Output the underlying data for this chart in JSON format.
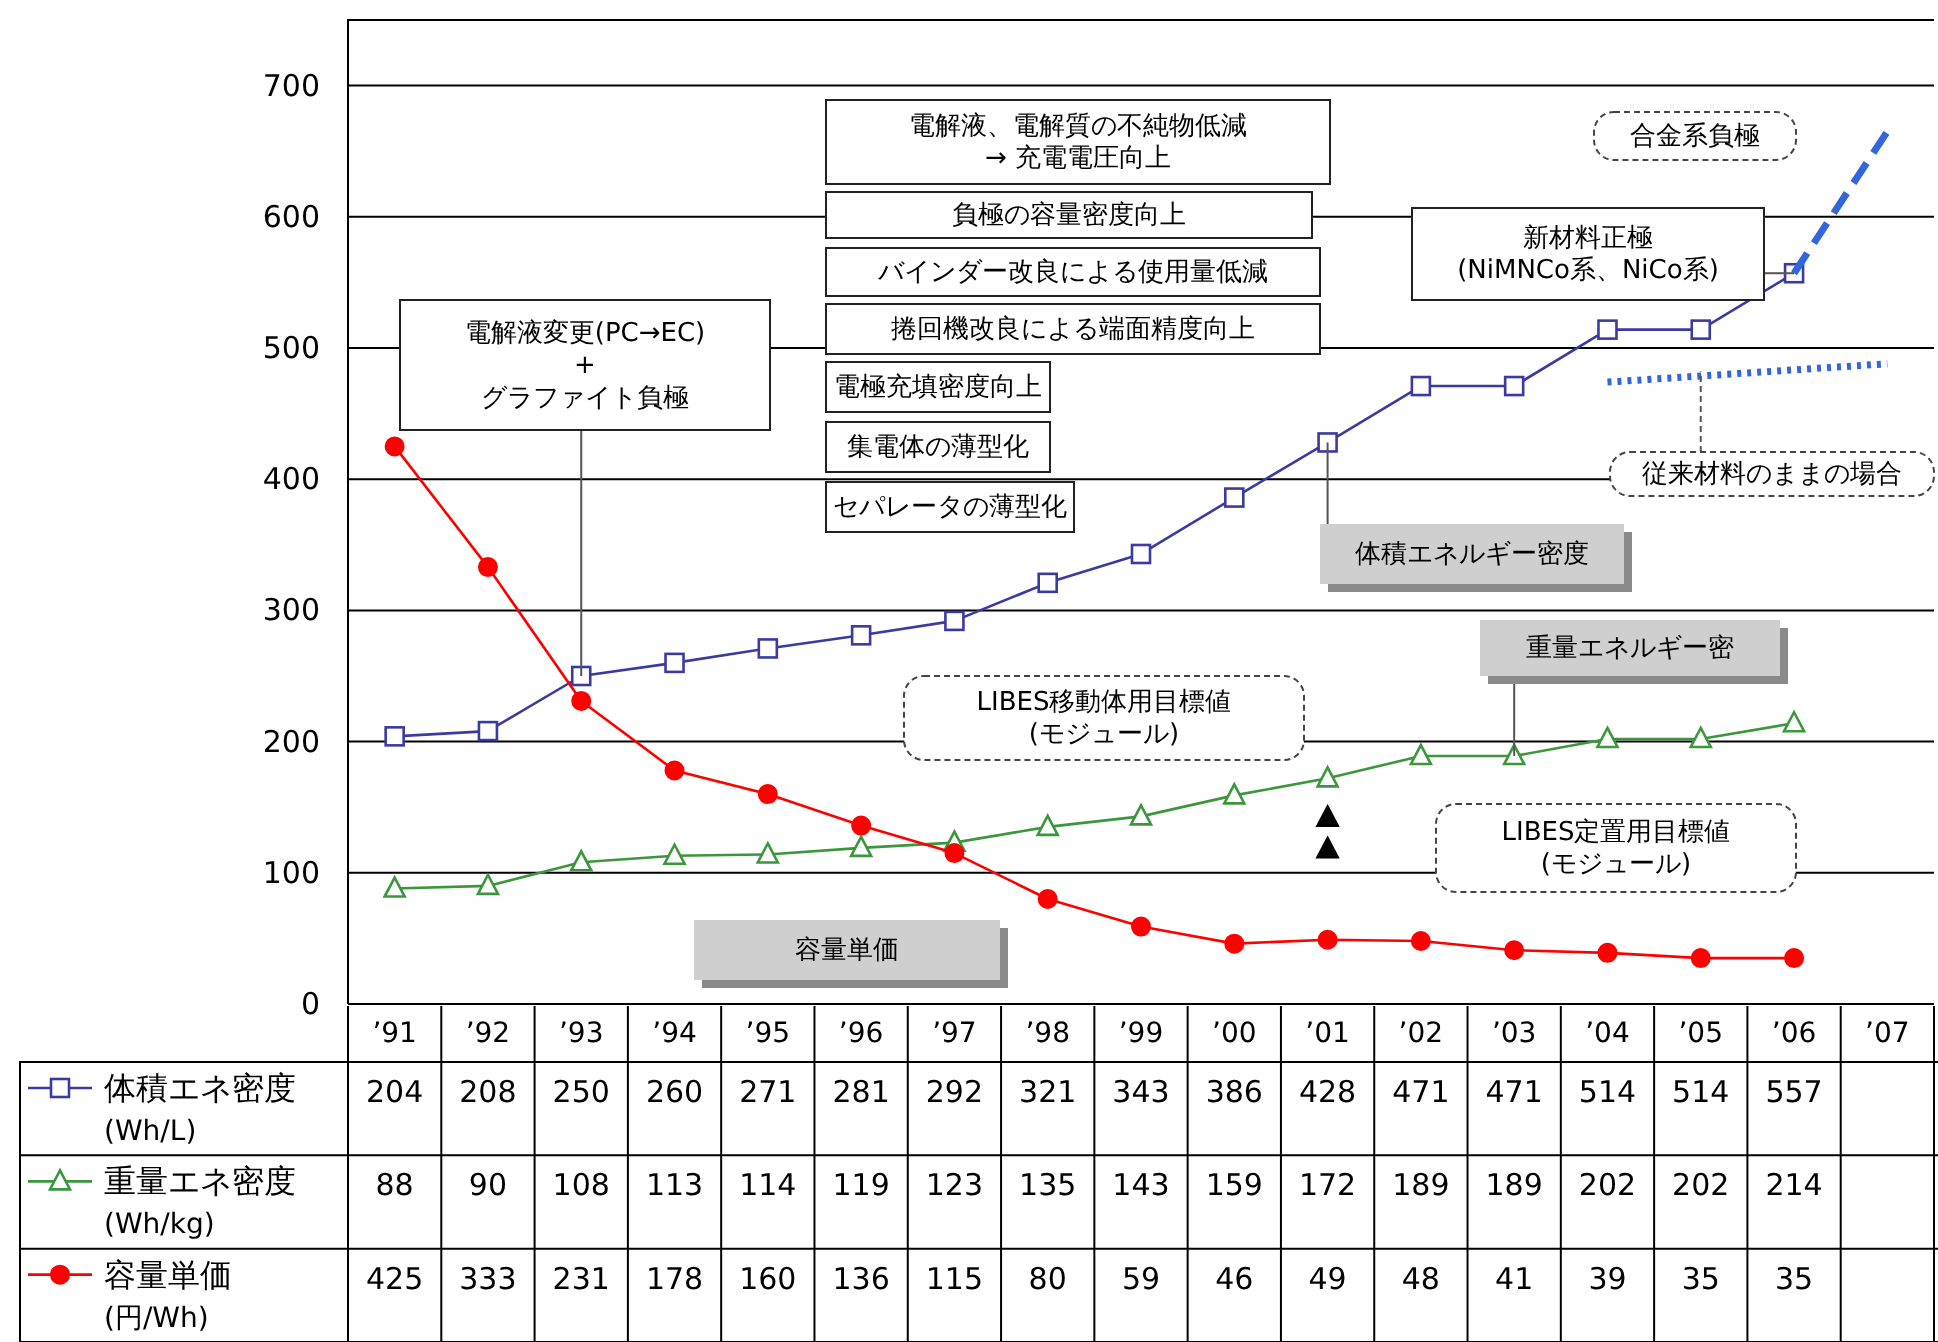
{
  "chart_data": {
    "type": "line",
    "categories": [
      "’91",
      "’92",
      "’93",
      "’94",
      "’95",
      "’96",
      "’97",
      "’98",
      "’99",
      "’00",
      "’01",
      "’02",
      "’03",
      "’04",
      "’05",
      "’06",
      "’07"
    ],
    "ylim": [
      0,
      750
    ],
    "yticks": [
      0,
      100,
      200,
      300,
      400,
      500,
      600,
      700
    ],
    "grid": "y",
    "legend": "bottom",
    "series": [
      {
        "name": "体積エネ密度\n(Wh/L)",
        "color": "#3a3aa0",
        "marker": "square",
        "values": [
          204,
          208,
          250,
          260,
          271,
          281,
          292,
          321,
          343,
          386,
          428,
          471,
          471,
          514,
          514,
          557,
          null
        ],
        "value_labels": [
          "204",
          "208",
          "250",
          "260",
          "271",
          "281",
          "292",
          "321",
          "343",
          "386",
          "428",
          "471",
          "471",
          "514",
          "514",
          "557",
          null
        ]
      },
      {
        "name": "重量エネ密度\n(Wh/kg)",
        "color": "#3c963c",
        "marker": "triangle",
        "values": [
          88,
          90,
          108,
          113,
          114,
          119,
          123,
          135,
          143,
          159,
          172,
          189,
          189,
          202,
          202,
          214,
          null
        ],
        "value_labels": [
          "88",
          "90",
          "108",
          "113",
          "114",
          "119",
          "123",
          "135",
          "143",
          "159",
          "172",
          "189",
          "189",
          "202",
          "202",
          "214",
          null
        ]
      },
      {
        "name": "容量単価\n(円/Wh)",
        "color": "#ff0000",
        "marker": "circle",
        "values": [
          425,
          333,
          231,
          178,
          160,
          136,
          115,
          80,
          59,
          46,
          49,
          48,
          41,
          39,
          35,
          35,
          null
        ],
        "value_labels": [
          "425",
          "333",
          "231",
          "178",
          "160",
          "136",
          "115",
          "80",
          "59",
          "46",
          "49",
          "48",
          "41",
          "39",
          "35",
          "35",
          null
        ]
      },
      {
        "type": "line",
        "x": [
          "’06",
          "’07"
        ],
        "values": [
          557,
          665
        ],
        "color": "#3366dd",
        "line_style": "dashed",
        "marker": "none"
      },
      {
        "type": "line",
        "x": [
          "’04",
          "’07"
        ],
        "values": [
          474,
          488
        ],
        "color": "#3366dd",
        "line_style": "dotted",
        "marker": "none"
      },
      {
        "type": "scatter",
        "x": [
          "’01",
          "’01"
        ],
        "values": [
          142,
          118
        ],
        "color": "#000000",
        "marker": "triangle"
      }
    ],
    "annotations": [
      "電解液、電解質の不純物低減\n→ 充電電圧向上",
      "負極の容量密度向上",
      "バインダー改良による使用量低減",
      "捲回機改良による端面精度向上",
      "電極充填密度向上",
      "集電体の薄型化",
      "セパレータの薄型化",
      {
        "text": "電解液変更(PC→EC)\n+\nグラファイト負極",
        "x": "’93",
        "y": 250
      },
      {
        "text": "新材料正極\n(NiMNCo系、NiCo系)",
        "x": "’06",
        "y": 557
      },
      "合金系負極",
      {
        "text": "従来材料のままの場合",
        "x": "’05",
        "y": 482
      },
      {
        "text": "体積エネルギー密度",
        "x": "’01",
        "y": 428
      },
      {
        "text": "重量エネルギー密",
        "x": "’03",
        "y": 189
      },
      "LIBES移動体用目標値\n(モジュール)",
      "LIBES定置用目標値\n(モジュール)",
      "容量単価"
    ]
  }
}
